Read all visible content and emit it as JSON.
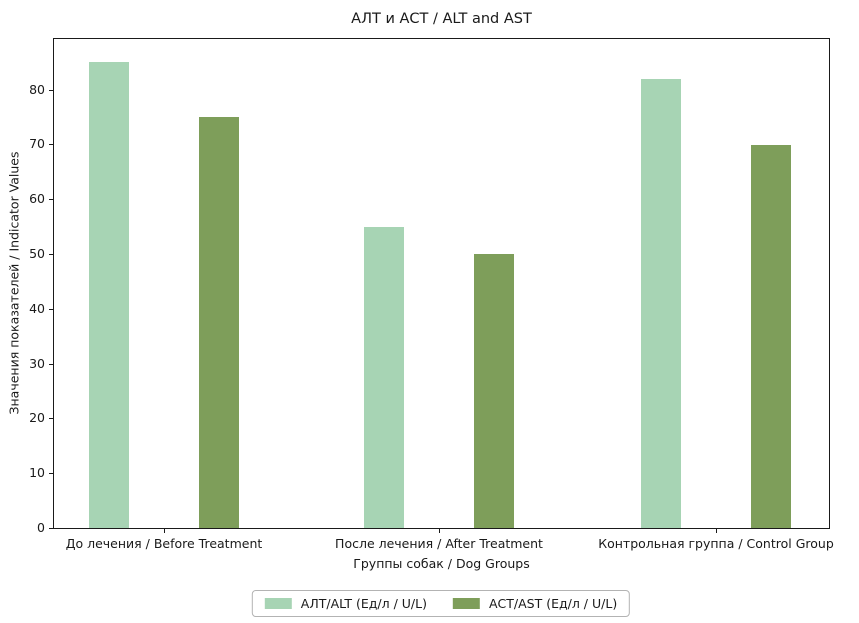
{
  "chart_data": {
    "type": "bar",
    "title": "АЛТ и АСТ / ALT and AST",
    "xlabel": "Группы собак / Dog Groups",
    "ylabel": "Значения показателей / Indicator Values",
    "categories": [
      "До лечения / Before Treatment",
      "После лечения / After Treatment",
      "Контрольная группа / Control Group"
    ],
    "series": [
      {
        "name": "АЛТ/ALT (Ед/л / U/L)",
        "color": "#a7d4b4",
        "values": [
          85,
          55,
          82
        ]
      },
      {
        "name": "АСТ/AST (Ед/л / U/L)",
        "color": "#7e9e5a",
        "values": [
          75,
          50,
          70
        ]
      }
    ],
    "ylim": [
      0,
      89.25
    ],
    "yticks": [
      0,
      10,
      20,
      30,
      40,
      50,
      60,
      70,
      80
    ],
    "grid": false,
    "legend_position": "bottom-center",
    "spine_color": "#1a1a1a",
    "background_color": "#ffffff"
  }
}
